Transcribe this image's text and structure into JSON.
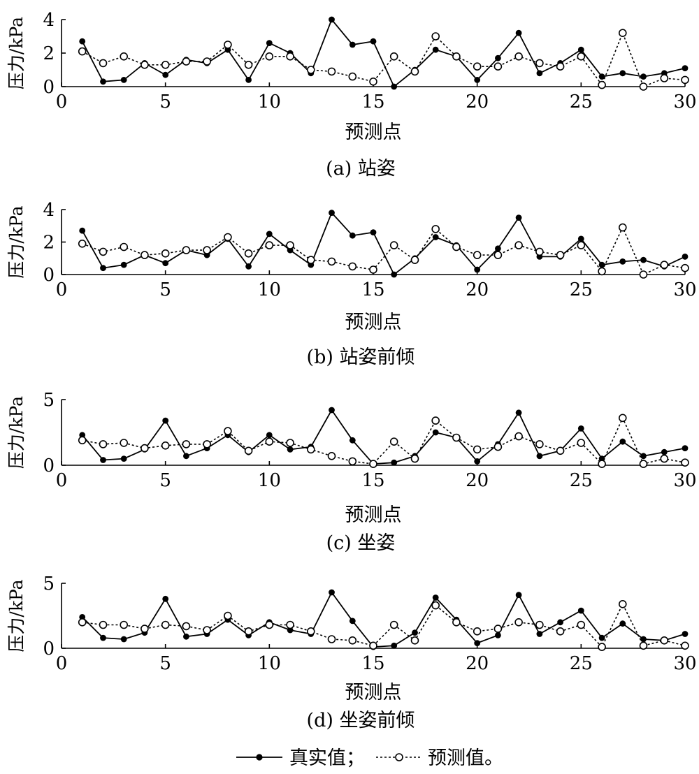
{
  "chart_data": [
    {
      "type": "line",
      "caption": "(a) 站姿",
      "xlabel": "预测点",
      "ylabel": "压力/kPa",
      "xlim": [
        0,
        30
      ],
      "ylim": [
        0,
        4
      ],
      "xticks": [
        0,
        5,
        10,
        15,
        20,
        25,
        30
      ],
      "yticks": [
        0,
        2,
        4
      ],
      "x": [
        1,
        2,
        3,
        4,
        5,
        6,
        7,
        8,
        9,
        10,
        11,
        12,
        13,
        14,
        15,
        16,
        17,
        18,
        19,
        20,
        21,
        22,
        23,
        24,
        25,
        26,
        27,
        28,
        29,
        30
      ],
      "series": [
        {
          "name": "真实值",
          "values": [
            2.7,
            0.3,
            0.4,
            1.4,
            0.7,
            1.6,
            1.4,
            2.2,
            0.4,
            2.6,
            2.0,
            0.8,
            4.0,
            2.5,
            2.7,
            0.0,
            1.0,
            2.2,
            1.8,
            0.4,
            1.7,
            3.2,
            0.8,
            1.4,
            2.2,
            0.6,
            0.8,
            0.6,
            0.8,
            1.1
          ]
        },
        {
          "name": "预测值",
          "values": [
            2.1,
            1.4,
            1.8,
            1.3,
            1.3,
            1.5,
            1.5,
            2.5,
            1.3,
            1.8,
            1.8,
            1.0,
            0.9,
            0.6,
            0.3,
            1.8,
            0.9,
            3.0,
            1.8,
            1.2,
            1.2,
            1.8,
            1.4,
            1.2,
            1.8,
            0.1,
            3.2,
            0.0,
            0.5,
            0.4
          ]
        }
      ]
    },
    {
      "type": "line",
      "caption": "(b) 站姿前倾",
      "xlabel": "预测点",
      "ylabel": "压力/kPa",
      "xlim": [
        0,
        30
      ],
      "ylim": [
        0,
        4
      ],
      "xticks": [
        0,
        5,
        10,
        15,
        20,
        25,
        30
      ],
      "yticks": [
        0,
        2,
        4
      ],
      "x": [
        1,
        2,
        3,
        4,
        5,
        6,
        7,
        8,
        9,
        10,
        11,
        12,
        13,
        14,
        15,
        16,
        17,
        18,
        19,
        20,
        21,
        22,
        23,
        24,
        25,
        26,
        27,
        28,
        29,
        30
      ],
      "series": [
        {
          "name": "真实值",
          "values": [
            2.7,
            0.4,
            0.6,
            1.2,
            0.7,
            1.5,
            1.2,
            2.2,
            0.5,
            2.5,
            1.5,
            0.6,
            3.8,
            2.4,
            2.6,
            0.0,
            1.0,
            2.3,
            1.8,
            0.3,
            1.6,
            3.5,
            1.1,
            1.1,
            2.2,
            0.6,
            0.8,
            0.9,
            0.5,
            1.1
          ]
        },
        {
          "name": "预测值",
          "values": [
            1.9,
            1.4,
            1.7,
            1.2,
            1.3,
            1.5,
            1.5,
            2.3,
            1.3,
            1.8,
            1.8,
            0.9,
            0.8,
            0.5,
            0.3,
            1.8,
            0.9,
            2.8,
            1.7,
            1.2,
            1.2,
            1.8,
            1.4,
            1.2,
            1.8,
            0.2,
            2.9,
            0.0,
            0.6,
            0.4
          ]
        }
      ]
    },
    {
      "type": "line",
      "caption": "(c) 坐姿",
      "xlabel": "预测点",
      "ylabel": "压力/kPa",
      "xlim": [
        0,
        30
      ],
      "ylim": [
        0,
        5
      ],
      "xticks": [
        0,
        5,
        10,
        15,
        20,
        25,
        30
      ],
      "yticks": [
        0,
        5
      ],
      "x": [
        1,
        2,
        3,
        4,
        5,
        6,
        7,
        8,
        9,
        10,
        11,
        12,
        13,
        14,
        15,
        16,
        17,
        18,
        19,
        20,
        21,
        22,
        23,
        24,
        25,
        26,
        27,
        28,
        29,
        30
      ],
      "series": [
        {
          "name": "真实值",
          "values": [
            2.3,
            0.4,
            0.5,
            1.2,
            3.4,
            0.7,
            1.3,
            2.3,
            1.0,
            2.3,
            1.2,
            1.4,
            4.2,
            1.9,
            0.1,
            0.2,
            0.7,
            2.5,
            2.1,
            0.3,
            1.6,
            4.0,
            0.7,
            1.1,
            2.8,
            0.5,
            1.8,
            0.7,
            1.0,
            1.3
          ]
        },
        {
          "name": "预测值",
          "values": [
            1.9,
            1.6,
            1.7,
            1.3,
            1.5,
            1.6,
            1.6,
            2.6,
            1.1,
            1.8,
            1.7,
            1.2,
            0.7,
            0.3,
            0.1,
            1.8,
            0.5,
            3.4,
            2.1,
            1.2,
            1.4,
            2.2,
            1.6,
            1.1,
            1.7,
            0.1,
            3.6,
            0.1,
            0.5,
            0.2
          ]
        }
      ]
    },
    {
      "type": "line",
      "caption": "(d) 坐姿前倾",
      "xlabel": "预测点",
      "ylabel": "压力/kPa",
      "xlim": [
        0,
        30
      ],
      "ylim": [
        0,
        5
      ],
      "xticks": [
        0,
        5,
        10,
        15,
        20,
        25,
        30
      ],
      "yticks": [
        0,
        5
      ],
      "x": [
        1,
        2,
        3,
        4,
        5,
        6,
        7,
        8,
        9,
        10,
        11,
        12,
        13,
        14,
        15,
        16,
        17,
        18,
        19,
        20,
        21,
        22,
        23,
        24,
        25,
        26,
        27,
        28,
        29,
        30
      ],
      "series": [
        {
          "name": "真实值",
          "values": [
            2.4,
            0.8,
            0.7,
            1.2,
            3.8,
            0.9,
            1.1,
            2.2,
            1.0,
            2.0,
            1.4,
            1.1,
            4.3,
            2.1,
            0.1,
            0.2,
            1.2,
            3.9,
            2.2,
            0.4,
            1.0,
            4.1,
            1.1,
            2.0,
            2.9,
            0.8,
            1.9,
            0.7,
            0.6,
            1.1
          ]
        },
        {
          "name": "预测值",
          "values": [
            2.0,
            1.8,
            1.8,
            1.5,
            1.8,
            1.7,
            1.4,
            2.5,
            1.3,
            1.8,
            1.8,
            1.3,
            0.7,
            0.6,
            0.2,
            1.8,
            0.6,
            3.3,
            2.0,
            1.3,
            1.5,
            2.0,
            1.8,
            1.3,
            1.8,
            0.1,
            3.4,
            0.2,
            0.6,
            0.2
          ]
        }
      ]
    }
  ],
  "legend": {
    "truth_label": "真实值；",
    "pred_label": "预测值。"
  }
}
